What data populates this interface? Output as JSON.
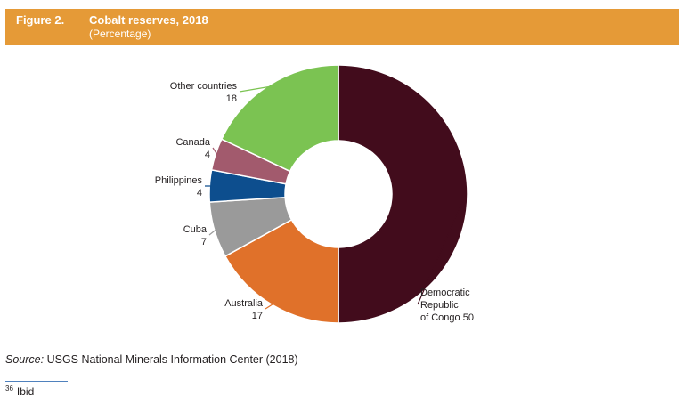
{
  "figure": {
    "number": "Figure 2.",
    "title": "Cobalt reserves, 2018",
    "subtitle": "(Percentage)"
  },
  "chart_data": {
    "type": "pie",
    "donut": true,
    "categories": [
      "Democratic Republic of Congo",
      "Australia",
      "Cuba",
      "Philippines",
      "Canada",
      "Other countries"
    ],
    "values": [
      50,
      17,
      7,
      4,
      4,
      18
    ],
    "colors": [
      "#420c1c",
      "#e0712a",
      "#9a9a9a",
      "#0d4e8e",
      "#a25a6d",
      "#7bc352"
    ],
    "slice_labels": [
      [
        "Democratic",
        "Republic",
        "of Congo 50"
      ],
      [
        "Australia",
        "17"
      ],
      [
        "Cuba",
        "7"
      ],
      [
        "Philippines",
        "4"
      ],
      [
        "Canada",
        "4"
      ],
      [
        "Other countries",
        "18"
      ]
    ]
  },
  "source": {
    "prefix": "Source:",
    "text": "USGS National Minerals Information Center (2018)"
  },
  "footnote": {
    "number": "36",
    "text": "Ibid"
  }
}
